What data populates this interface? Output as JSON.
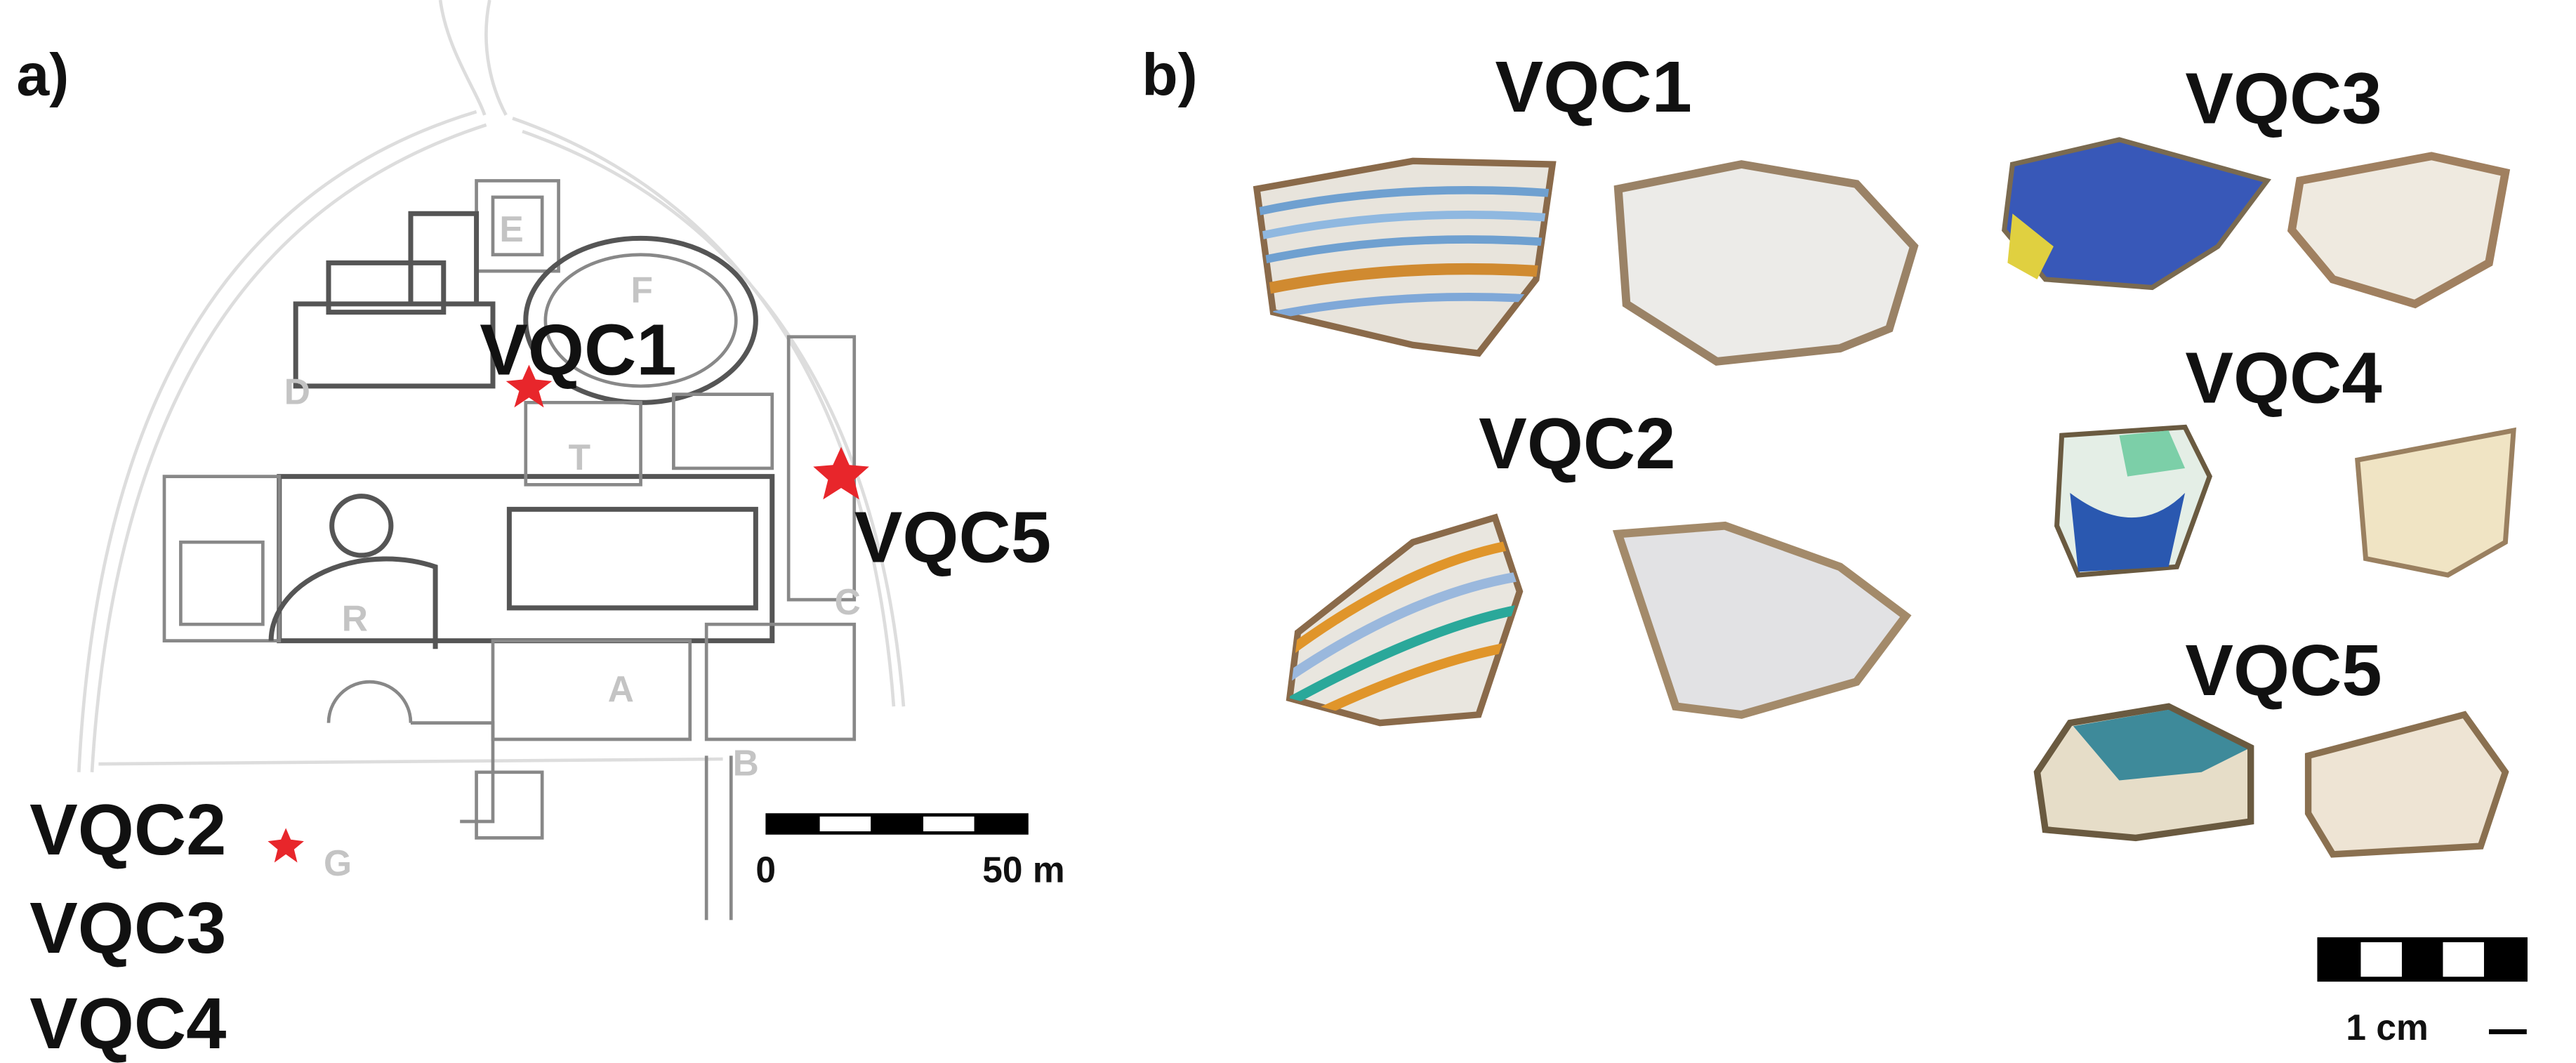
{
  "panel_a": {
    "label": "a)",
    "samples": [
      "VQC1",
      "VQC5",
      "VQC2",
      "VQC3",
      "VQC4"
    ],
    "areas": [
      "E",
      "F",
      "D",
      "T",
      "R",
      "A",
      "C",
      "B",
      "G"
    ],
    "scale_bar": {
      "start": "0",
      "end": "50 m"
    }
  },
  "panel_b": {
    "label": "b)",
    "sherds": [
      "VQC1",
      "VQC2",
      "VQC3",
      "VQC4",
      "VQC5"
    ],
    "scale_bar": "1 cm"
  }
}
